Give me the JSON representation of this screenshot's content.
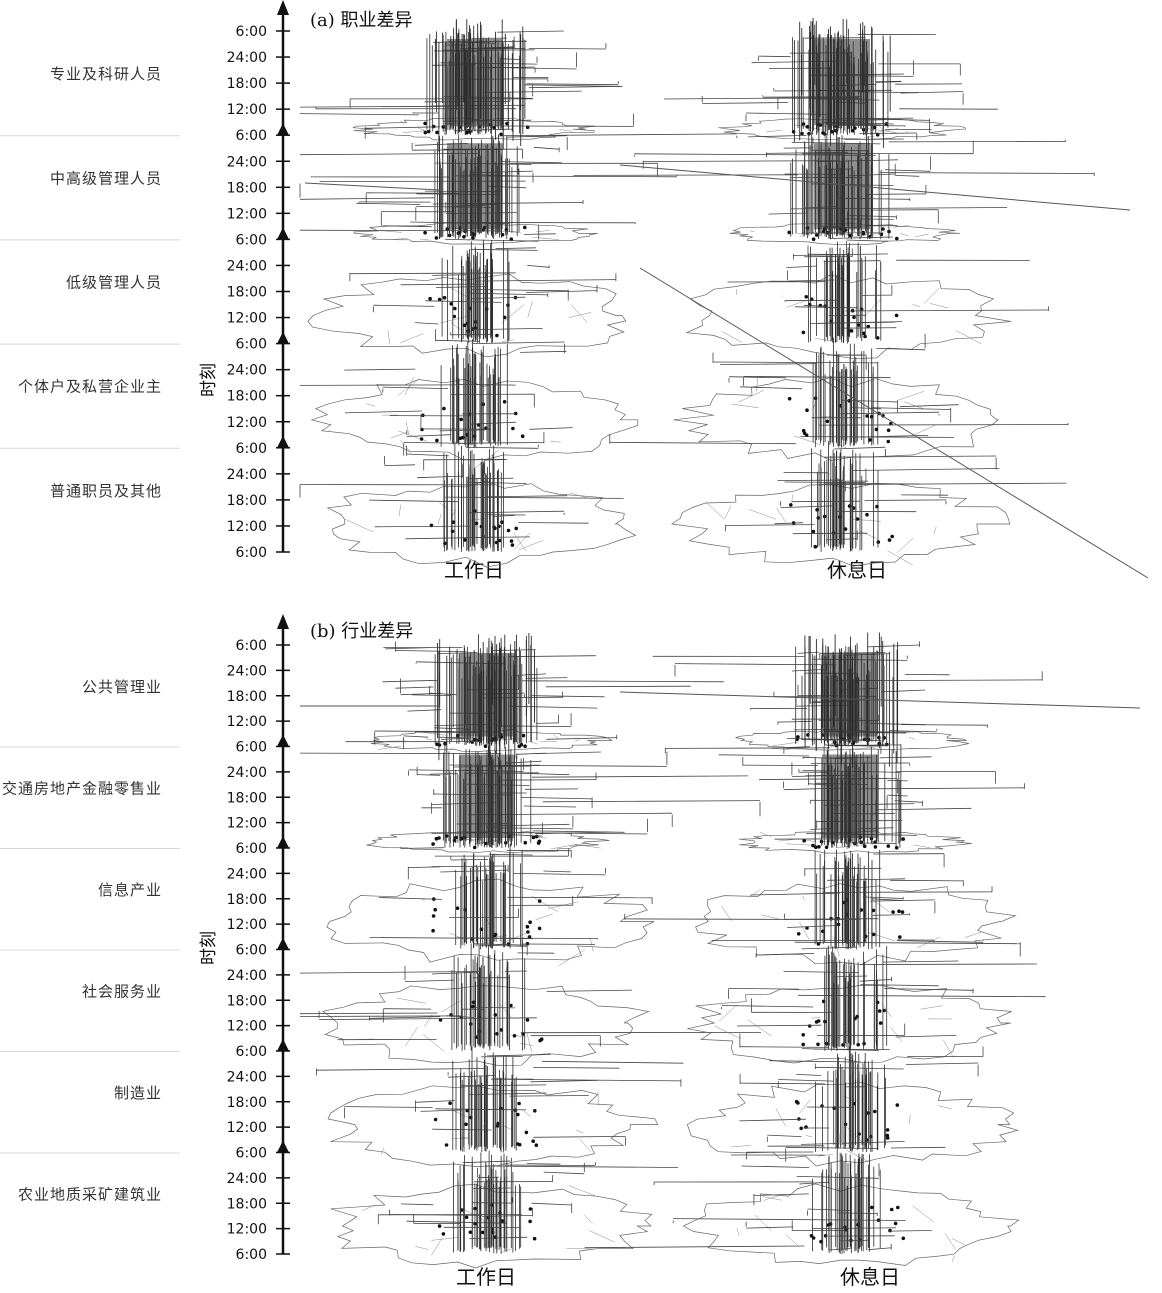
{
  "panels": [
    {
      "title": "(a) 职业差异",
      "axis_title": "时刻",
      "columns": [
        "工作日",
        "休息日"
      ],
      "tick_labels": [
        "6:00",
        "24:00",
        "18:00",
        "12:00",
        "6:00",
        "24:00",
        "18:00",
        "12:00",
        "6:00",
        "24:00",
        "18:00",
        "12:00",
        "6:00",
        "24:00",
        "18:00",
        "12:00",
        "6:00",
        "24:00",
        "18:00",
        "12:00",
        "6:00"
      ],
      "categories": [
        "专业及科研人员",
        "中高级管理人员",
        "低级管理人员",
        "个体户及私营企业主",
        "普通职员及其他"
      ]
    },
    {
      "title": "(b) 行业差异",
      "axis_title": "时刻",
      "columns": [
        "工作日",
        "休息日"
      ],
      "tick_labels": [
        "6:00",
        "24:00",
        "18:00",
        "12:00",
        "6:00",
        "24:00",
        "18:00",
        "12:00",
        "6:00",
        "24:00",
        "18:00",
        "12:00",
        "6:00",
        "24:00",
        "18:00",
        "12:00",
        "6:00",
        "24:00",
        "18:00",
        "12:00",
        "6:00",
        "24:00",
        "18:00",
        "12:00",
        "6:00"
      ],
      "categories": [
        "公共管理业",
        "交通房地产金融零售业",
        "信息产业",
        "社会服务业",
        "制造业",
        "农业地质采矿建筑业"
      ]
    }
  ],
  "colors": {
    "ink": "#2b2b2b",
    "grid": "#d8d8d8"
  }
}
